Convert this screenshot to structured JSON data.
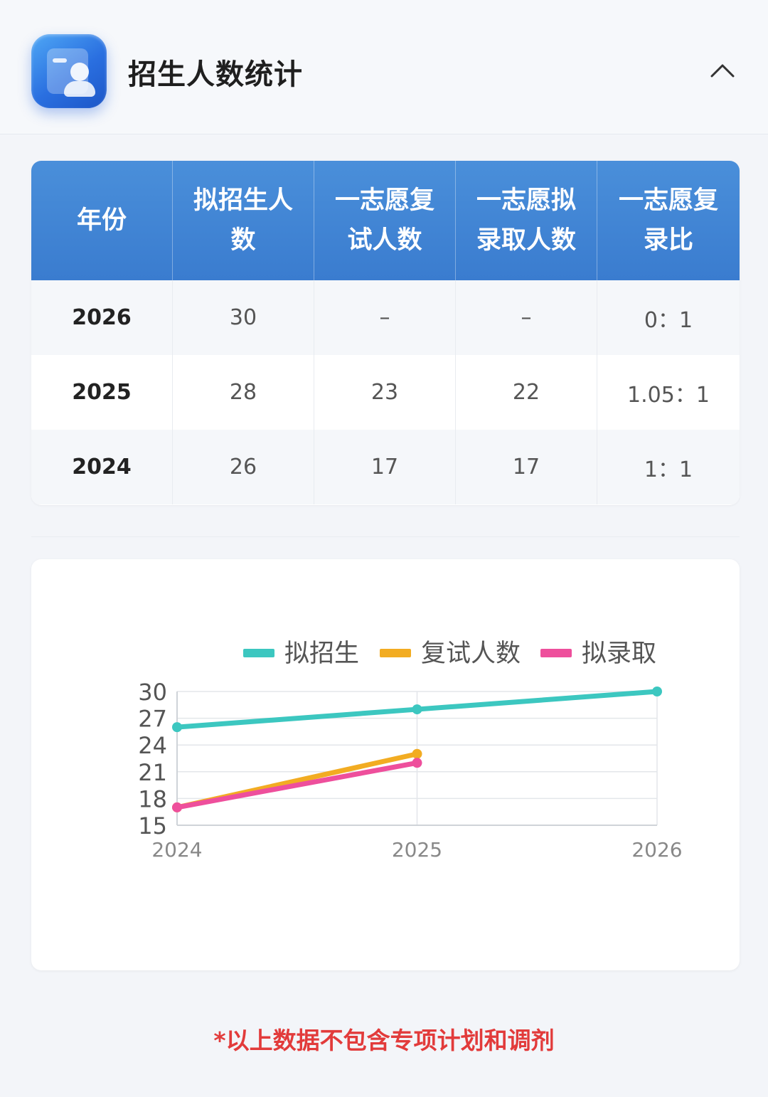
{
  "header": {
    "title": "招生人数统计",
    "app_icon": "profile-card-icon",
    "collapse_icon": "chevron-up-icon"
  },
  "table": {
    "headers": [
      "年份",
      "拟招生人数",
      "一志愿复试人数",
      "一志愿拟录取人数",
      "一志愿复录比"
    ],
    "rows": [
      [
        "2026",
        "30",
        "–",
        "–",
        "0：1"
      ],
      [
        "2025",
        "28",
        "23",
        "22",
        "1.05：1"
      ],
      [
        "2024",
        "26",
        "17",
        "17",
        "1：1"
      ]
    ],
    "header_color": "#3d80d2"
  },
  "chart_data": {
    "type": "line",
    "x": [
      "2024",
      "2025",
      "2026"
    ],
    "yticks": [
      "30",
      "27",
      "24",
      "21",
      "18",
      "15"
    ],
    "ylim": [
      15,
      30
    ],
    "grid": true,
    "legend_position": "top",
    "series": [
      {
        "name": "拟招生",
        "color": "#3cc7c0",
        "values": [
          26,
          28,
          30
        ]
      },
      {
        "name": "复试人数",
        "color": "#f2ac22",
        "values": [
          17,
          23,
          null
        ]
      },
      {
        "name": "拟录取",
        "color": "#ee4f9c",
        "values": [
          17,
          22,
          null
        ]
      }
    ]
  },
  "footnote": "*以上数据不包含专项计划和调剂"
}
